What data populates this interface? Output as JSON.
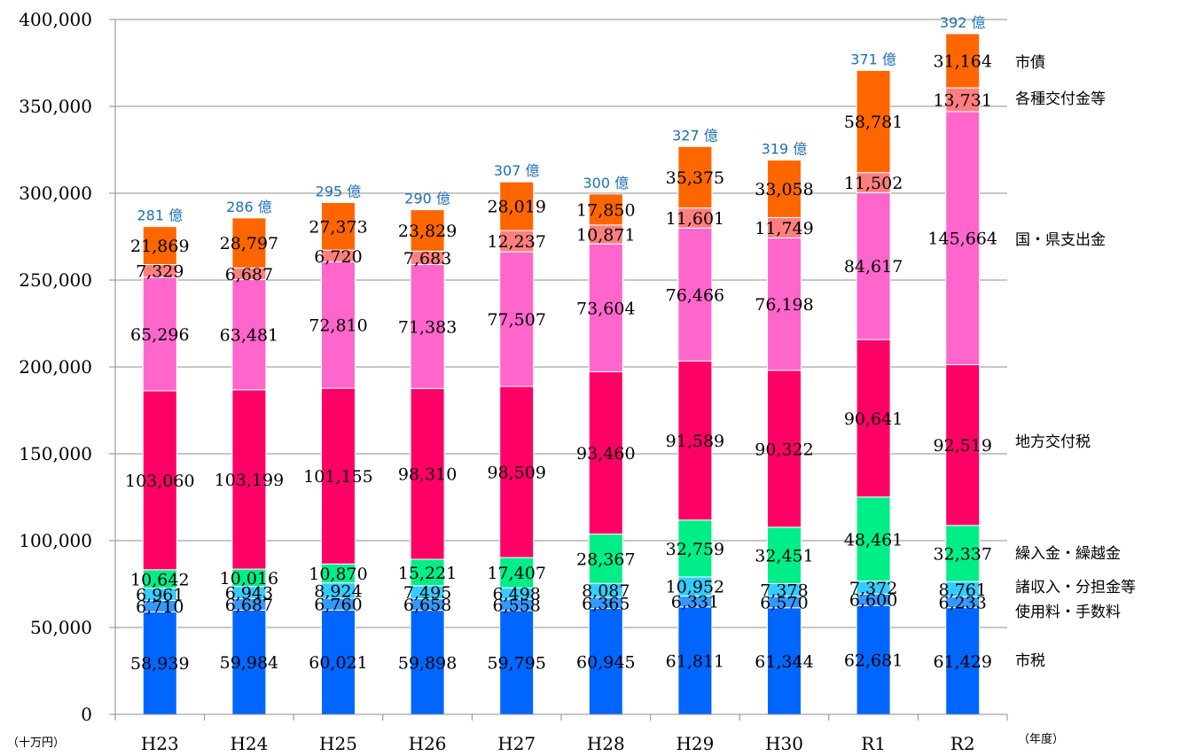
{
  "chart_data": {
    "type": "bar",
    "stacked": true,
    "categories": [
      "H23",
      "H24",
      "H25",
      "H26",
      "H27",
      "H28",
      "H29",
      "H30",
      "R1",
      "R2"
    ],
    "totals_label": [
      "281 億",
      "286 億",
      "295 億",
      "290 億",
      "307 億",
      "300 億",
      "327 億",
      "319 億",
      "371 億",
      "392 億"
    ],
    "series": [
      {
        "name": "市税",
        "color": "#0066ff",
        "values": [
          58939,
          59984,
          60021,
          59898,
          59795,
          60945,
          61811,
          61344,
          62681,
          61429
        ]
      },
      {
        "name": "使用料・手数料",
        "color": "#3399ff",
        "values": [
          6710,
          6687,
          6760,
          6658,
          6558,
          6365,
          6331,
          6570,
          6600,
          6233
        ]
      },
      {
        "name": "諸収入・分担金等",
        "color": "#33ccff",
        "values": [
          6961,
          6943,
          8924,
          7495,
          6498,
          8087,
          10952,
          7378,
          7372,
          8761
        ]
      },
      {
        "name": "繰入金・繰越金",
        "color": "#00ee88",
        "values": [
          10642,
          10016,
          10870,
          15221,
          17407,
          28367,
          32759,
          32451,
          48461,
          32337
        ]
      },
      {
        "name": "地方交付税",
        "color": "#ff0066",
        "values": [
          103060,
          103199,
          101155,
          98310,
          98509,
          93460,
          91589,
          90322,
          90641,
          92519
        ]
      },
      {
        "name": "国・県支出金",
        "color": "#ff66cc",
        "values": [
          65296,
          63481,
          72810,
          71383,
          77507,
          73604,
          76466,
          76198,
          84617,
          145664
        ]
      },
      {
        "name": "各種交付金等",
        "color": "#ff7f7f",
        "values": [
          7329,
          6687,
          6720,
          7683,
          12237,
          10871,
          11601,
          11749,
          11502,
          13731
        ]
      },
      {
        "name": "市債",
        "color": "#ff6600",
        "values": [
          21869,
          28797,
          27373,
          23829,
          28019,
          17850,
          35375,
          33058,
          58781,
          31164
        ]
      }
    ],
    "ylim": [
      0,
      400000
    ],
    "yticks": [
      "0",
      "50,000",
      "100,000",
      "150,000",
      "200,000",
      "250,000",
      "300,000",
      "350,000",
      "400,000"
    ],
    "yunit": "（十万円）",
    "xunit": "（年度）",
    "grid": true,
    "legend_placement": "right"
  }
}
